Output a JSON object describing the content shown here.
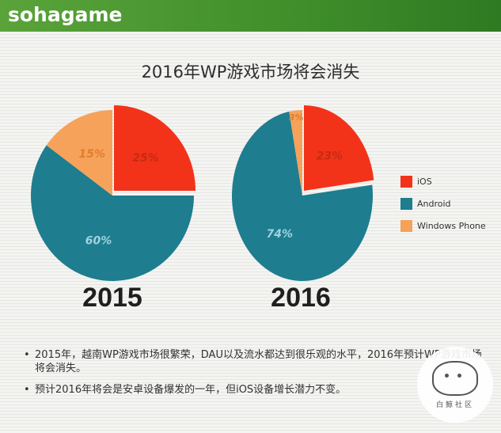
{
  "header": {
    "logo_text": "sohagame"
  },
  "slide_title": "2016年WP游戏市场将会消失",
  "colors": {
    "ios": "#f2331a",
    "android": "#1e7d8f",
    "windows_phone": "#f6a25a",
    "brand_green": "#4a9a33"
  },
  "chart_data": [
    {
      "type": "pie",
      "title": "2015",
      "slices": [
        {
          "name": "iOS",
          "value": 25,
          "label": "25%"
        },
        {
          "name": "Android",
          "value": 60,
          "label": "60%"
        },
        {
          "name": "Windows Phone",
          "value": 15,
          "label": "15%"
        }
      ]
    },
    {
      "type": "pie",
      "title": "2016",
      "slices": [
        {
          "name": "iOS",
          "value": 23,
          "label": "23%"
        },
        {
          "name": "Android",
          "value": 74,
          "label": "74%"
        },
        {
          "name": "Windows Phone",
          "value": 3,
          "label": "3%"
        }
      ]
    }
  ],
  "legend": [
    {
      "name": "iOS",
      "color": "#f2331a"
    },
    {
      "name": "Android",
      "color": "#1e7d8f"
    },
    {
      "name": "Windows Phone",
      "color": "#f6a25a"
    }
  ],
  "bullets": [
    "2015年，越南WP游戏市场很繁荣，DAU以及流水都达到很乐观的水平，2016年预计WP游戏市场将会消失。",
    "预计2016年将会是安卓设备爆发的一年，但iOS设备增长潜力不变。"
  ],
  "watermark": {
    "text": "白鲸社区",
    "icon": "whale-logo-icon"
  }
}
